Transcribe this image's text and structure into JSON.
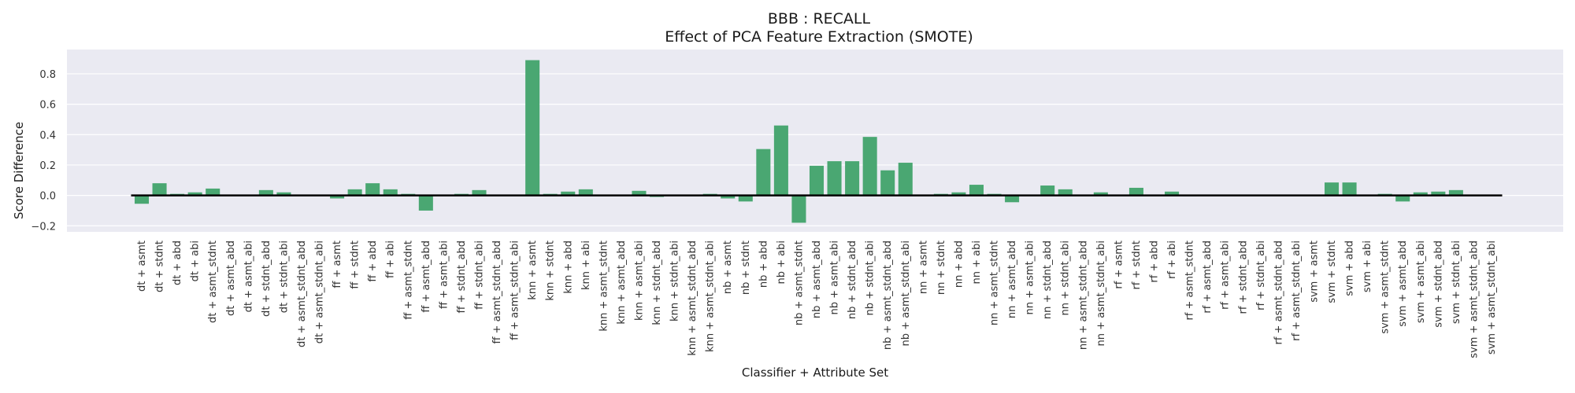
{
  "chart_data": {
    "type": "bar",
    "title": "BBB : RECALL",
    "subtitle": "Effect of PCA Feature Extraction (SMOTE)",
    "xlabel": "Classifier + Attribute Set",
    "ylabel": "Score Difference",
    "ylim": [
      -0.24,
      0.96
    ],
    "yticks": [
      -0.2,
      0.0,
      0.2,
      0.4,
      0.6,
      0.8
    ],
    "ytick_labels": [
      "−0.2",
      "0.0",
      "0.2",
      "0.4",
      "0.6",
      "0.8"
    ],
    "grid": true,
    "baseline": 0,
    "categories": [
      "dt + asmt",
      "dt + stdnt",
      "dt + abd",
      "dt + abi",
      "dt + asmt_stdnt",
      "dt + asmt_abd",
      "dt + asmt_abi",
      "dt + stdnt_abd",
      "dt + stdnt_abi",
      "dt + asmt_stdnt_abd",
      "dt + asmt_stdnt_abi",
      "ff + asmt",
      "ff + stdnt",
      "ff + abd",
      "ff + abi",
      "ff + asmt_stdnt",
      "ff + asmt_abd",
      "ff + asmt_abi",
      "ff + stdnt_abd",
      "ff + stdnt_abi",
      "ff + asmt_stdnt_abd",
      "ff + asmt_stdnt_abi",
      "knn + asmt",
      "knn + stdnt",
      "knn + abd",
      "knn + abi",
      "knn + asmt_stdnt",
      "knn + asmt_abd",
      "knn + asmt_abi",
      "knn + stdnt_abd",
      "knn + stdnt_abi",
      "knn + asmt_stdnt_abd",
      "knn + asmt_stdnt_abi",
      "nb + asmt",
      "nb + stdnt",
      "nb + abd",
      "nb + abi",
      "nb + asmt_stdnt",
      "nb + asmt_abd",
      "nb + asmt_abi",
      "nb + stdnt_abd",
      "nb + stdnt_abi",
      "nb + asmt_stdnt_abd",
      "nb + asmt_stdnt_abi",
      "nn + asmt",
      "nn + stdnt",
      "nn + abd",
      "nn + abi",
      "nn + asmt_stdnt",
      "nn + asmt_abd",
      "nn + asmt_abi",
      "nn + stdnt_abd",
      "nn + stdnt_abi",
      "nn + asmt_stdnt_abd",
      "nn + asmt_stdnt_abi",
      "rf + asmt",
      "rf + stdnt",
      "rf + abd",
      "rf + abi",
      "rf + asmt_stdnt",
      "rf + asmt_abd",
      "rf + asmt_abi",
      "rf + stdnt_abd",
      "rf + stdnt_abi",
      "rf + asmt_stdnt_abd",
      "rf + asmt_stdnt_abi",
      "svm + asmt",
      "svm + stdnt",
      "svm + abd",
      "svm + abi",
      "svm + asmt_stdnt",
      "svm + asmt_abd",
      "svm + asmt_abi",
      "svm + stdnt_abd",
      "svm + stdnt_abi",
      "svm + asmt_stdnt_abd",
      "svm + asmt_stdnt_abi"
    ],
    "values": [
      -0.055,
      0.08,
      0.01,
      0.02,
      0.045,
      0.0,
      0.0,
      0.035,
      0.02,
      0.0,
      0.0,
      -0.02,
      0.04,
      0.08,
      0.04,
      0.01,
      -0.1,
      0.0,
      0.01,
      0.035,
      0.0,
      0.0,
      0.89,
      0.01,
      0.025,
      0.04,
      -0.005,
      0.0,
      0.03,
      -0.01,
      0.0,
      -0.005,
      0.01,
      -0.02,
      -0.04,
      0.305,
      0.46,
      -0.18,
      0.195,
      0.225,
      0.225,
      0.385,
      0.165,
      0.215,
      0.0,
      0.01,
      0.02,
      0.07,
      0.01,
      -0.045,
      0.0,
      0.065,
      0.04,
      0.0,
      0.02,
      0.0,
      0.05,
      0.0,
      0.025,
      -0.005,
      0.0,
      0.0,
      0.0,
      0.0,
      0.0,
      0.0,
      0.0,
      0.085,
      0.085,
      0.0,
      0.01,
      -0.04,
      0.02,
      0.025,
      0.035,
      -0.005,
      0.0
    ],
    "colors": {
      "bar": "#4aa772",
      "plot_bg": "#eaeaf2",
      "grid": "#ffffff",
      "baseline": "#000000"
    }
  }
}
